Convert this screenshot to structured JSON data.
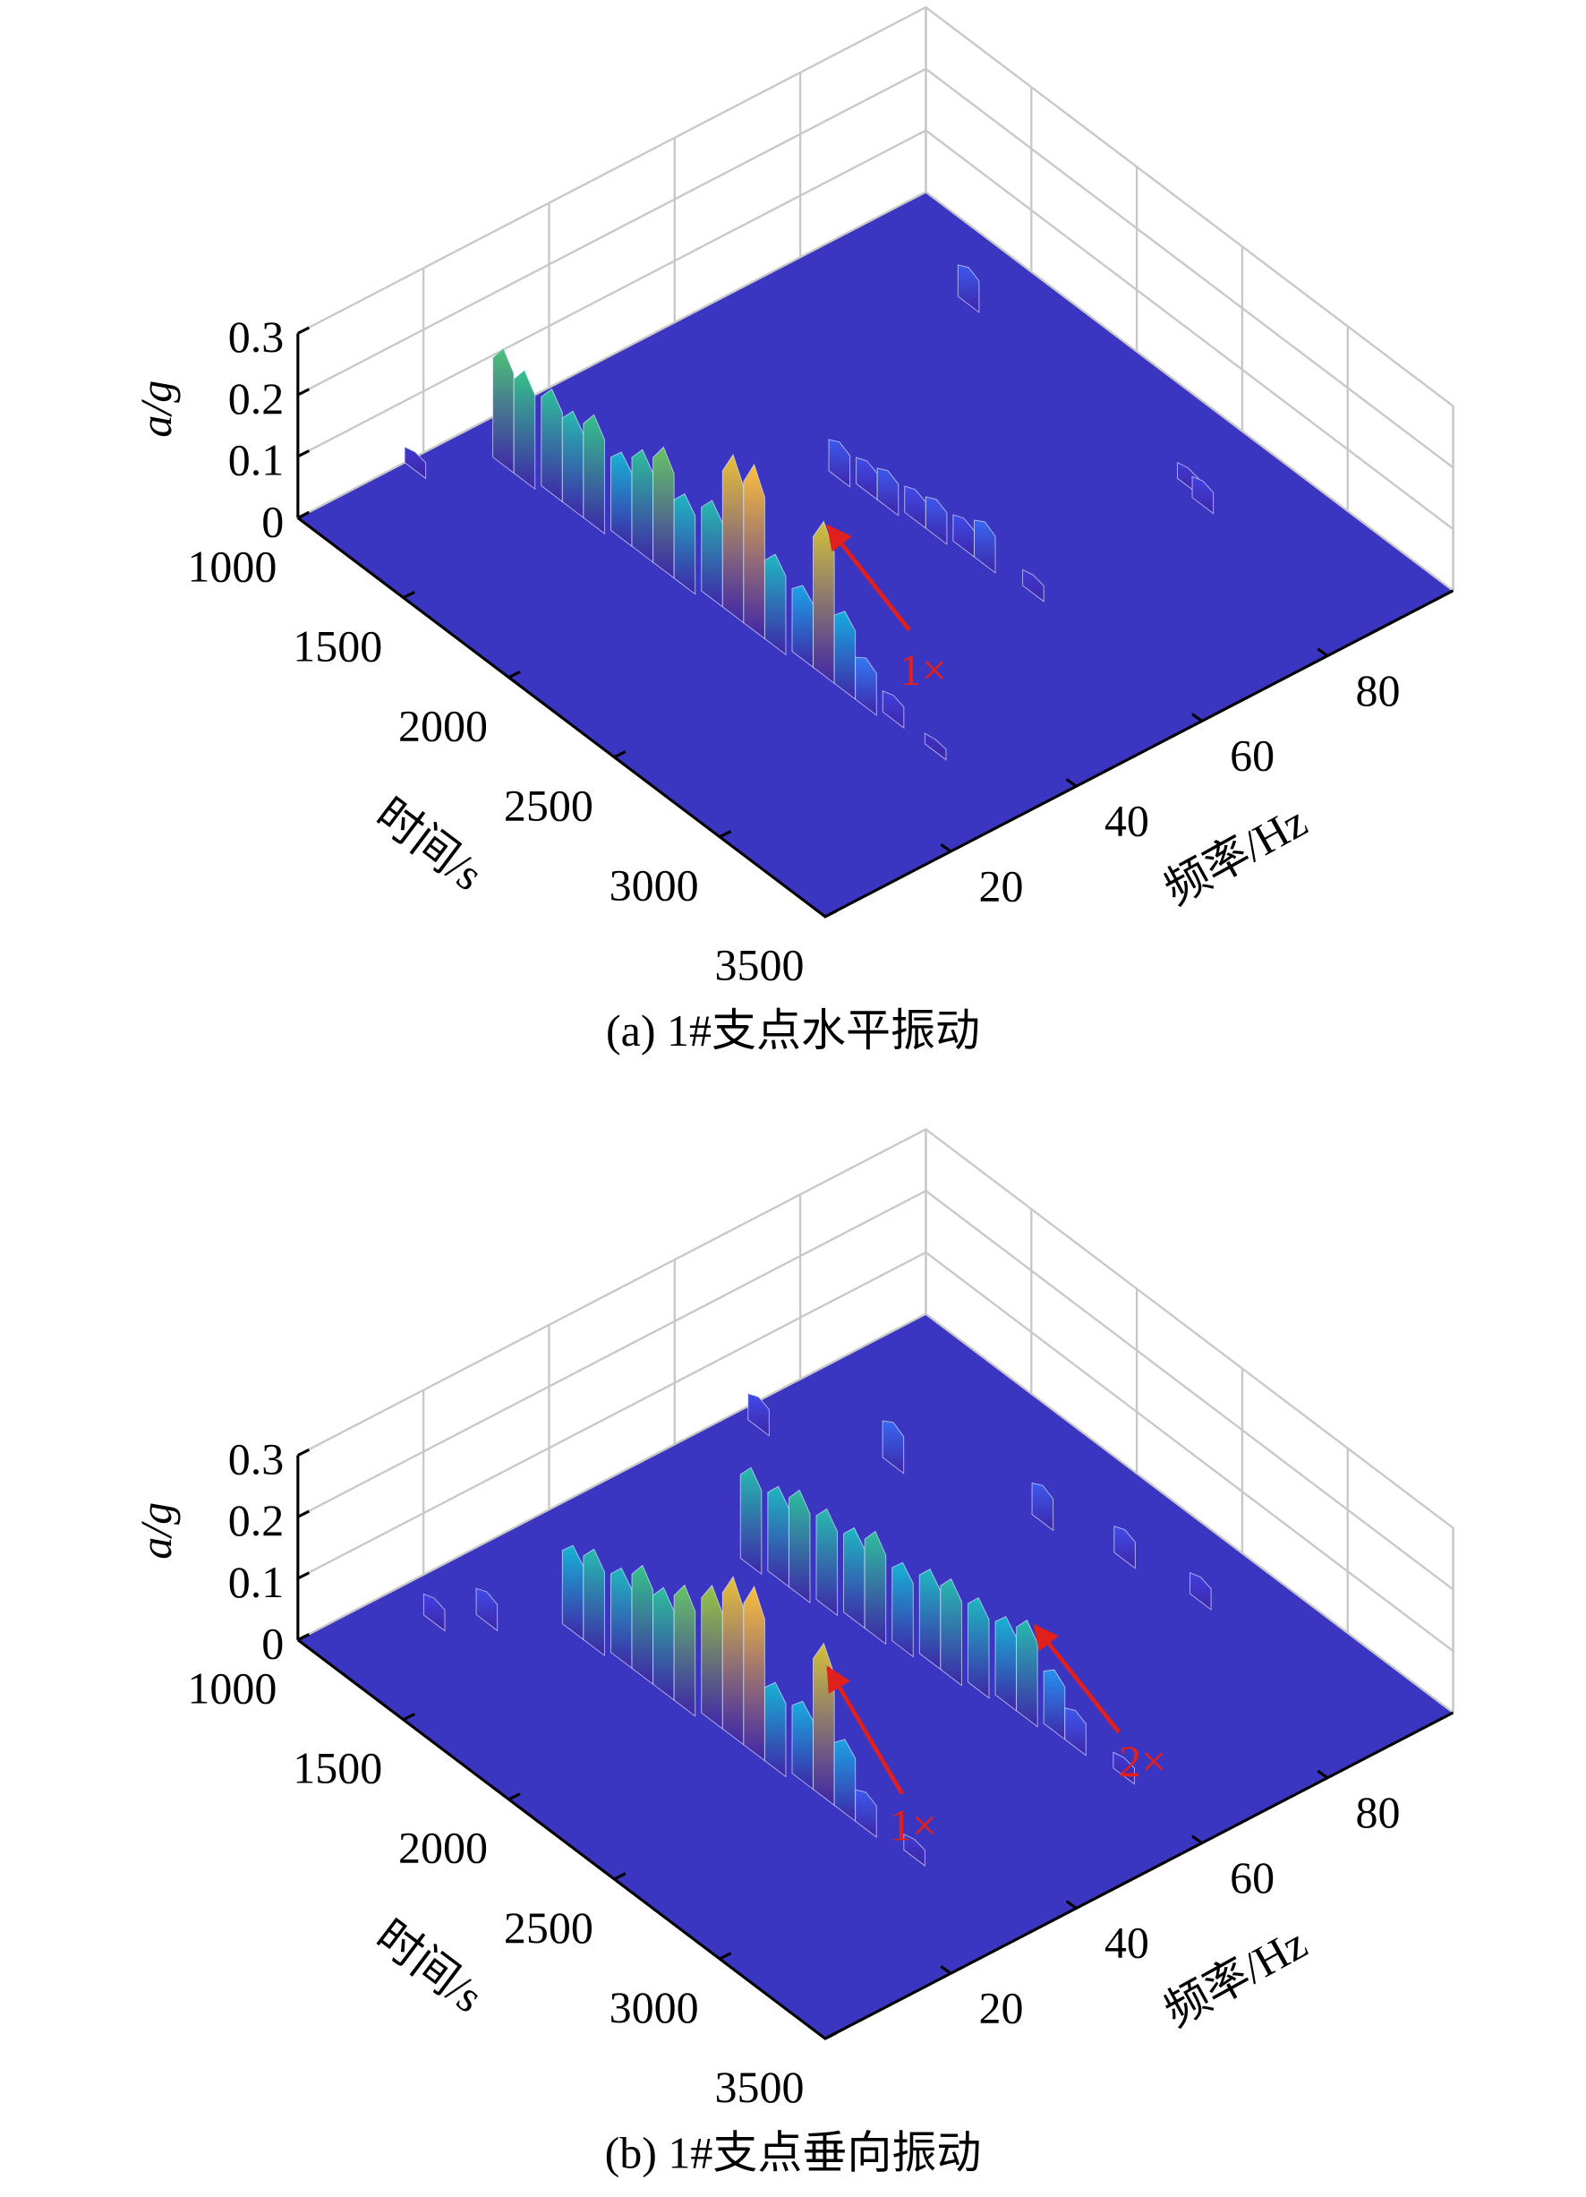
{
  "chart_data": [
    {
      "type": "waterfall",
      "title": "(a) 1#支点水平振动",
      "xlabel": "频率/Hz",
      "ylabel": "时间/s",
      "zlabel": "a/g",
      "xlim": [
        0,
        100
      ],
      "xticks": [
        20,
        40,
        60,
        80
      ],
      "ylim": [
        1000,
        3500
      ],
      "yticks": [
        1000,
        1500,
        2000,
        2500,
        3000,
        3500
      ],
      "zlim": [
        0,
        0.3
      ],
      "zticks": [
        0,
        0.1,
        0.2,
        0.3
      ],
      "colormap": "parula",
      "grid": true,
      "points": {
        "frequency": [
          26,
          26,
          27,
          27,
          27,
          28,
          28,
          28,
          28,
          29,
          29,
          29,
          29,
          30,
          30,
          30,
          30,
          31,
          31,
          17,
          56,
          57,
          57,
          58,
          58,
          59,
          59,
          60,
          90,
          87,
          88
        ],
        "time": [
          1200,
          1300,
          1400,
          1500,
          1600,
          1700,
          1800,
          1900,
          2000,
          2100,
          2200,
          2300,
          2400,
          2500,
          2600,
          2700,
          2800,
          2900,
          3100,
          1050,
          1900,
          2000,
          2100,
          2200,
          2300,
          2400,
          2500,
          2700,
          1500,
          2700,
          2600
        ],
        "values": [
          0.19,
          0.18,
          0.17,
          0.16,
          0.18,
          0.14,
          0.17,
          0.2,
          0.15,
          0.16,
          0.26,
          0.27,
          0.15,
          0.12,
          0.25,
          0.13,
          0.08,
          0.04,
          0.02,
          0.03,
          0.06,
          0.05,
          0.06,
          0.05,
          0.06,
          0.05,
          0.07,
          0.03,
          0.06,
          0.04,
          0.03
        ]
      },
      "annotations": [
        {
          "text": "1×"
        }
      ]
    },
    {
      "type": "waterfall",
      "title": "(b) 1#支点垂向振动",
      "xlabel": "频率/Hz",
      "ylabel": "时间/s",
      "zlabel": "a/g",
      "xlim": [
        0,
        100
      ],
      "xticks": [
        20,
        40,
        60,
        80
      ],
      "ylim": [
        1000,
        3500
      ],
      "yticks": [
        1000,
        1500,
        2000,
        2500,
        3000,
        3500
      ],
      "zlim": [
        0,
        0.3
      ],
      "zticks": [
        0,
        0.1,
        0.2,
        0.3
      ],
      "colormap": "parula",
      "grid": true,
      "points": {
        "frequency": [
          27,
          27,
          28,
          28,
          28,
          28,
          29,
          29,
          29,
          29,
          30,
          30,
          30,
          30,
          31,
          52,
          53,
          53,
          54,
          55,
          55,
          56,
          57,
          57,
          58,
          59,
          59,
          60,
          60,
          61,
          15,
          20,
          78,
          85,
          88,
          90,
          70
        ],
        "time": [
          1500,
          1600,
          1700,
          1800,
          1900,
          2000,
          2100,
          2200,
          2300,
          2400,
          2500,
          2600,
          2700,
          2800,
          3000,
          1600,
          1700,
          1800,
          1900,
          2000,
          2100,
          2200,
          2300,
          2400,
          2500,
          2600,
          2700,
          2800,
          2900,
          3100,
          1200,
          1300,
          1500,
          2000,
          2300,
          2600,
          1100
        ],
        "values": [
          0.14,
          0.16,
          0.15,
          0.18,
          0.17,
          0.2,
          0.22,
          0.26,
          0.27,
          0.14,
          0.13,
          0.25,
          0.12,
          0.06,
          0.03,
          0.16,
          0.15,
          0.17,
          0.16,
          0.15,
          0.17,
          0.14,
          0.15,
          0.16,
          0.15,
          0.14,
          0.16,
          0.1,
          0.06,
          0.03,
          0.04,
          0.05,
          0.07,
          0.06,
          0.05,
          0.04,
          0.05
        ]
      },
      "annotations": [
        {
          "text": "1×"
        },
        {
          "text": "2×"
        }
      ]
    }
  ]
}
